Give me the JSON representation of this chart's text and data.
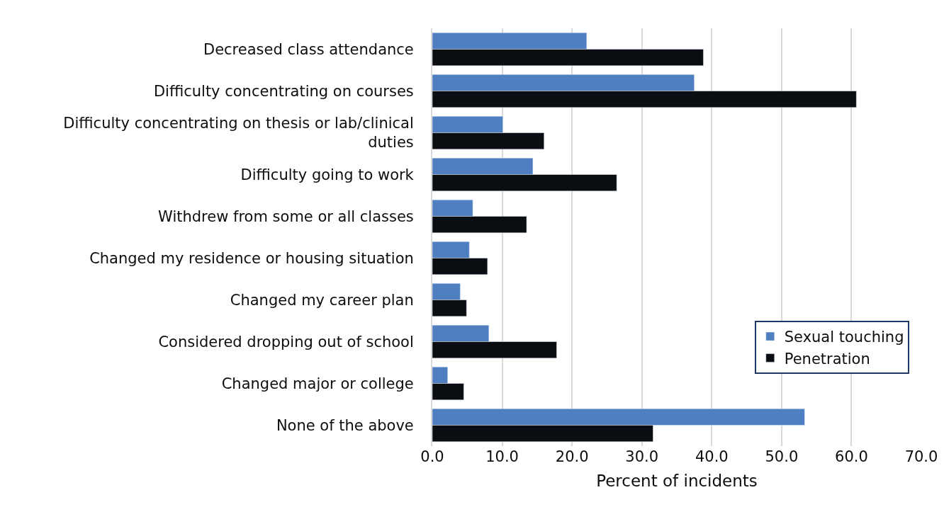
{
  "chart_data": {
    "type": "bar",
    "orientation": "horizontal",
    "categories": [
      "Decreased class attendance",
      "Difficulty concentrating on courses",
      "Difficulty concentrating on thesis or lab/clinical duties",
      "Difficulty going to work",
      "Withdrew from some or all classes",
      "Changed my residence or housing situation",
      "Changed my career plan",
      "Considered dropping out of school",
      "Changed major or college",
      "None of the above"
    ],
    "series": [
      {
        "name": "Sexual touching",
        "color": "#4f7fc0",
        "values": [
          22.1,
          37.5,
          10.1,
          14.4,
          5.8,
          5.3,
          4.0,
          8.1,
          2.2,
          53.3
        ]
      },
      {
        "name": "Penetration",
        "color": "#0a0e12",
        "values": [
          38.8,
          60.7,
          16.0,
          26.4,
          13.5,
          7.9,
          4.9,
          17.8,
          4.5,
          31.6
        ]
      }
    ],
    "xlabel": "Percent of incidents",
    "xlim": [
      0,
      70
    ],
    "xticks": [
      {
        "value": 0,
        "label": "0.0"
      },
      {
        "value": 10,
        "label": "10.0"
      },
      {
        "value": 20,
        "label": "20.0"
      },
      {
        "value": 30,
        "label": "30.0"
      },
      {
        "value": 40,
        "label": "40.0"
      },
      {
        "value": 50,
        "label": "50.0"
      },
      {
        "value": 60,
        "label": "60.0"
      },
      {
        "value": 70,
        "label": "70.0"
      }
    ],
    "grid": "x",
    "legend": "bottom right"
  }
}
